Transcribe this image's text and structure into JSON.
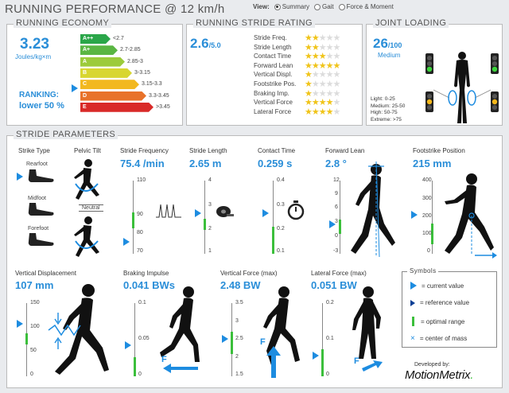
{
  "header": {
    "title": "RUNNING PERFORMANCE @ 12 km/h",
    "view_label": "View:",
    "view_options": [
      "Summary",
      "Gait",
      "Force & Moment"
    ],
    "view_selected": "Summary"
  },
  "economy": {
    "title": "RUNNING ECONOMY",
    "value": "3.23",
    "unit": "Joules/kg×m",
    "ranking_label": "RANKING:",
    "ranking_value": "lower 50 %",
    "bars": [
      {
        "grade": "A++",
        "range": "<2.7",
        "color": "#2aa649"
      },
      {
        "grade": "A+",
        "range": "2.7-2.85",
        "color": "#5ab643"
      },
      {
        "grade": "A",
        "range": "2.85-3",
        "color": "#9ccb3b"
      },
      {
        "grade": "B",
        "range": "3-3.15",
        "color": "#d8d631"
      },
      {
        "grade": "C",
        "range": "3.15-3.3",
        "color": "#f2b81f"
      },
      {
        "grade": "D",
        "range": "3.3-3.45",
        "color": "#e8722a"
      },
      {
        "grade": "E",
        "range": ">3.45",
        "color": "#d92a28"
      }
    ]
  },
  "stride_rating": {
    "title": "RUNNING STRIDE RATING",
    "value": "2.6",
    "unit": "/5.0",
    "items": [
      {
        "label": "Stride Freq.",
        "stars": 2
      },
      {
        "label": "Stride Length",
        "stars": 2
      },
      {
        "label": "Contact Time",
        "stars": 3
      },
      {
        "label": "Forward Lean",
        "stars": 5
      },
      {
        "label": "Vertical Displ.",
        "stars": 1
      },
      {
        "label": "Footstrike Pos.",
        "stars": 1
      },
      {
        "label": "Braking Imp.",
        "stars": 1
      },
      {
        "label": "Vertical Force",
        "stars": 4
      },
      {
        "label": "Lateral Force",
        "stars": 4
      }
    ]
  },
  "joint_loading": {
    "title": "JOINT LOADING",
    "value": "26",
    "unit": "/100",
    "level": "Medium",
    "legend": [
      "Light: 0-25",
      "Medium: 25-50",
      "High: 50-75",
      "Extreme: >75"
    ]
  },
  "stride_params": {
    "title": "STRIDE PARAMETERS",
    "strike_type": {
      "title": "Strike Type",
      "options": [
        "Rearfoot",
        "Midfoot",
        "Forefoot"
      ]
    },
    "pelvic_tilt": {
      "title": "Pelvic Tilt",
      "label": "Neutral"
    },
    "frequency": {
      "title": "Stride Frequency",
      "value": "75.4 /min",
      "ticks": [
        "110",
        "90",
        "80",
        "70"
      ]
    },
    "length": {
      "title": "Stride Length",
      "value": "2.65 m",
      "ticks": [
        "4",
        "3",
        "2",
        "1"
      ]
    },
    "contact": {
      "title": "Contact Time",
      "value": "0.259 s",
      "ticks": [
        "0.4",
        "0.3",
        "0.2",
        "0.1"
      ]
    },
    "lean": {
      "title": "Forward Lean",
      "value": "2.8 °",
      "ticks": [
        "12",
        "9",
        "6",
        "3",
        "0",
        "-3"
      ]
    },
    "footstrike": {
      "title": "Footstrike Position",
      "value": "215 mm",
      "ticks": [
        "400",
        "300",
        "200",
        "100",
        "0"
      ]
    },
    "vertical_disp": {
      "title": "Vertical Displacement",
      "value": "107 mm",
      "ticks": [
        "150",
        "100",
        "50",
        "0"
      ]
    },
    "braking": {
      "title": "Braking Impulse",
      "value": "0.041 BWs",
      "ticks": [
        "0.1",
        "0.05",
        "0"
      ]
    },
    "vforce": {
      "title": "Vertical Force (max)",
      "value": "2.48 BW",
      "ticks": [
        "3.5",
        "3",
        "2.5",
        "2",
        "1.5"
      ]
    },
    "lforce": {
      "title": "Lateral Force (max)",
      "value": "0.051 BW",
      "ticks": [
        "0.2",
        "0.1",
        "0"
      ]
    }
  },
  "symbols": {
    "title": "Symbols",
    "items": [
      "= current value",
      "= reference value",
      "= optimal range",
      "= center of mass"
    ]
  },
  "brand": {
    "developed_by": "Developed by:",
    "name": "MotionMetrix"
  }
}
